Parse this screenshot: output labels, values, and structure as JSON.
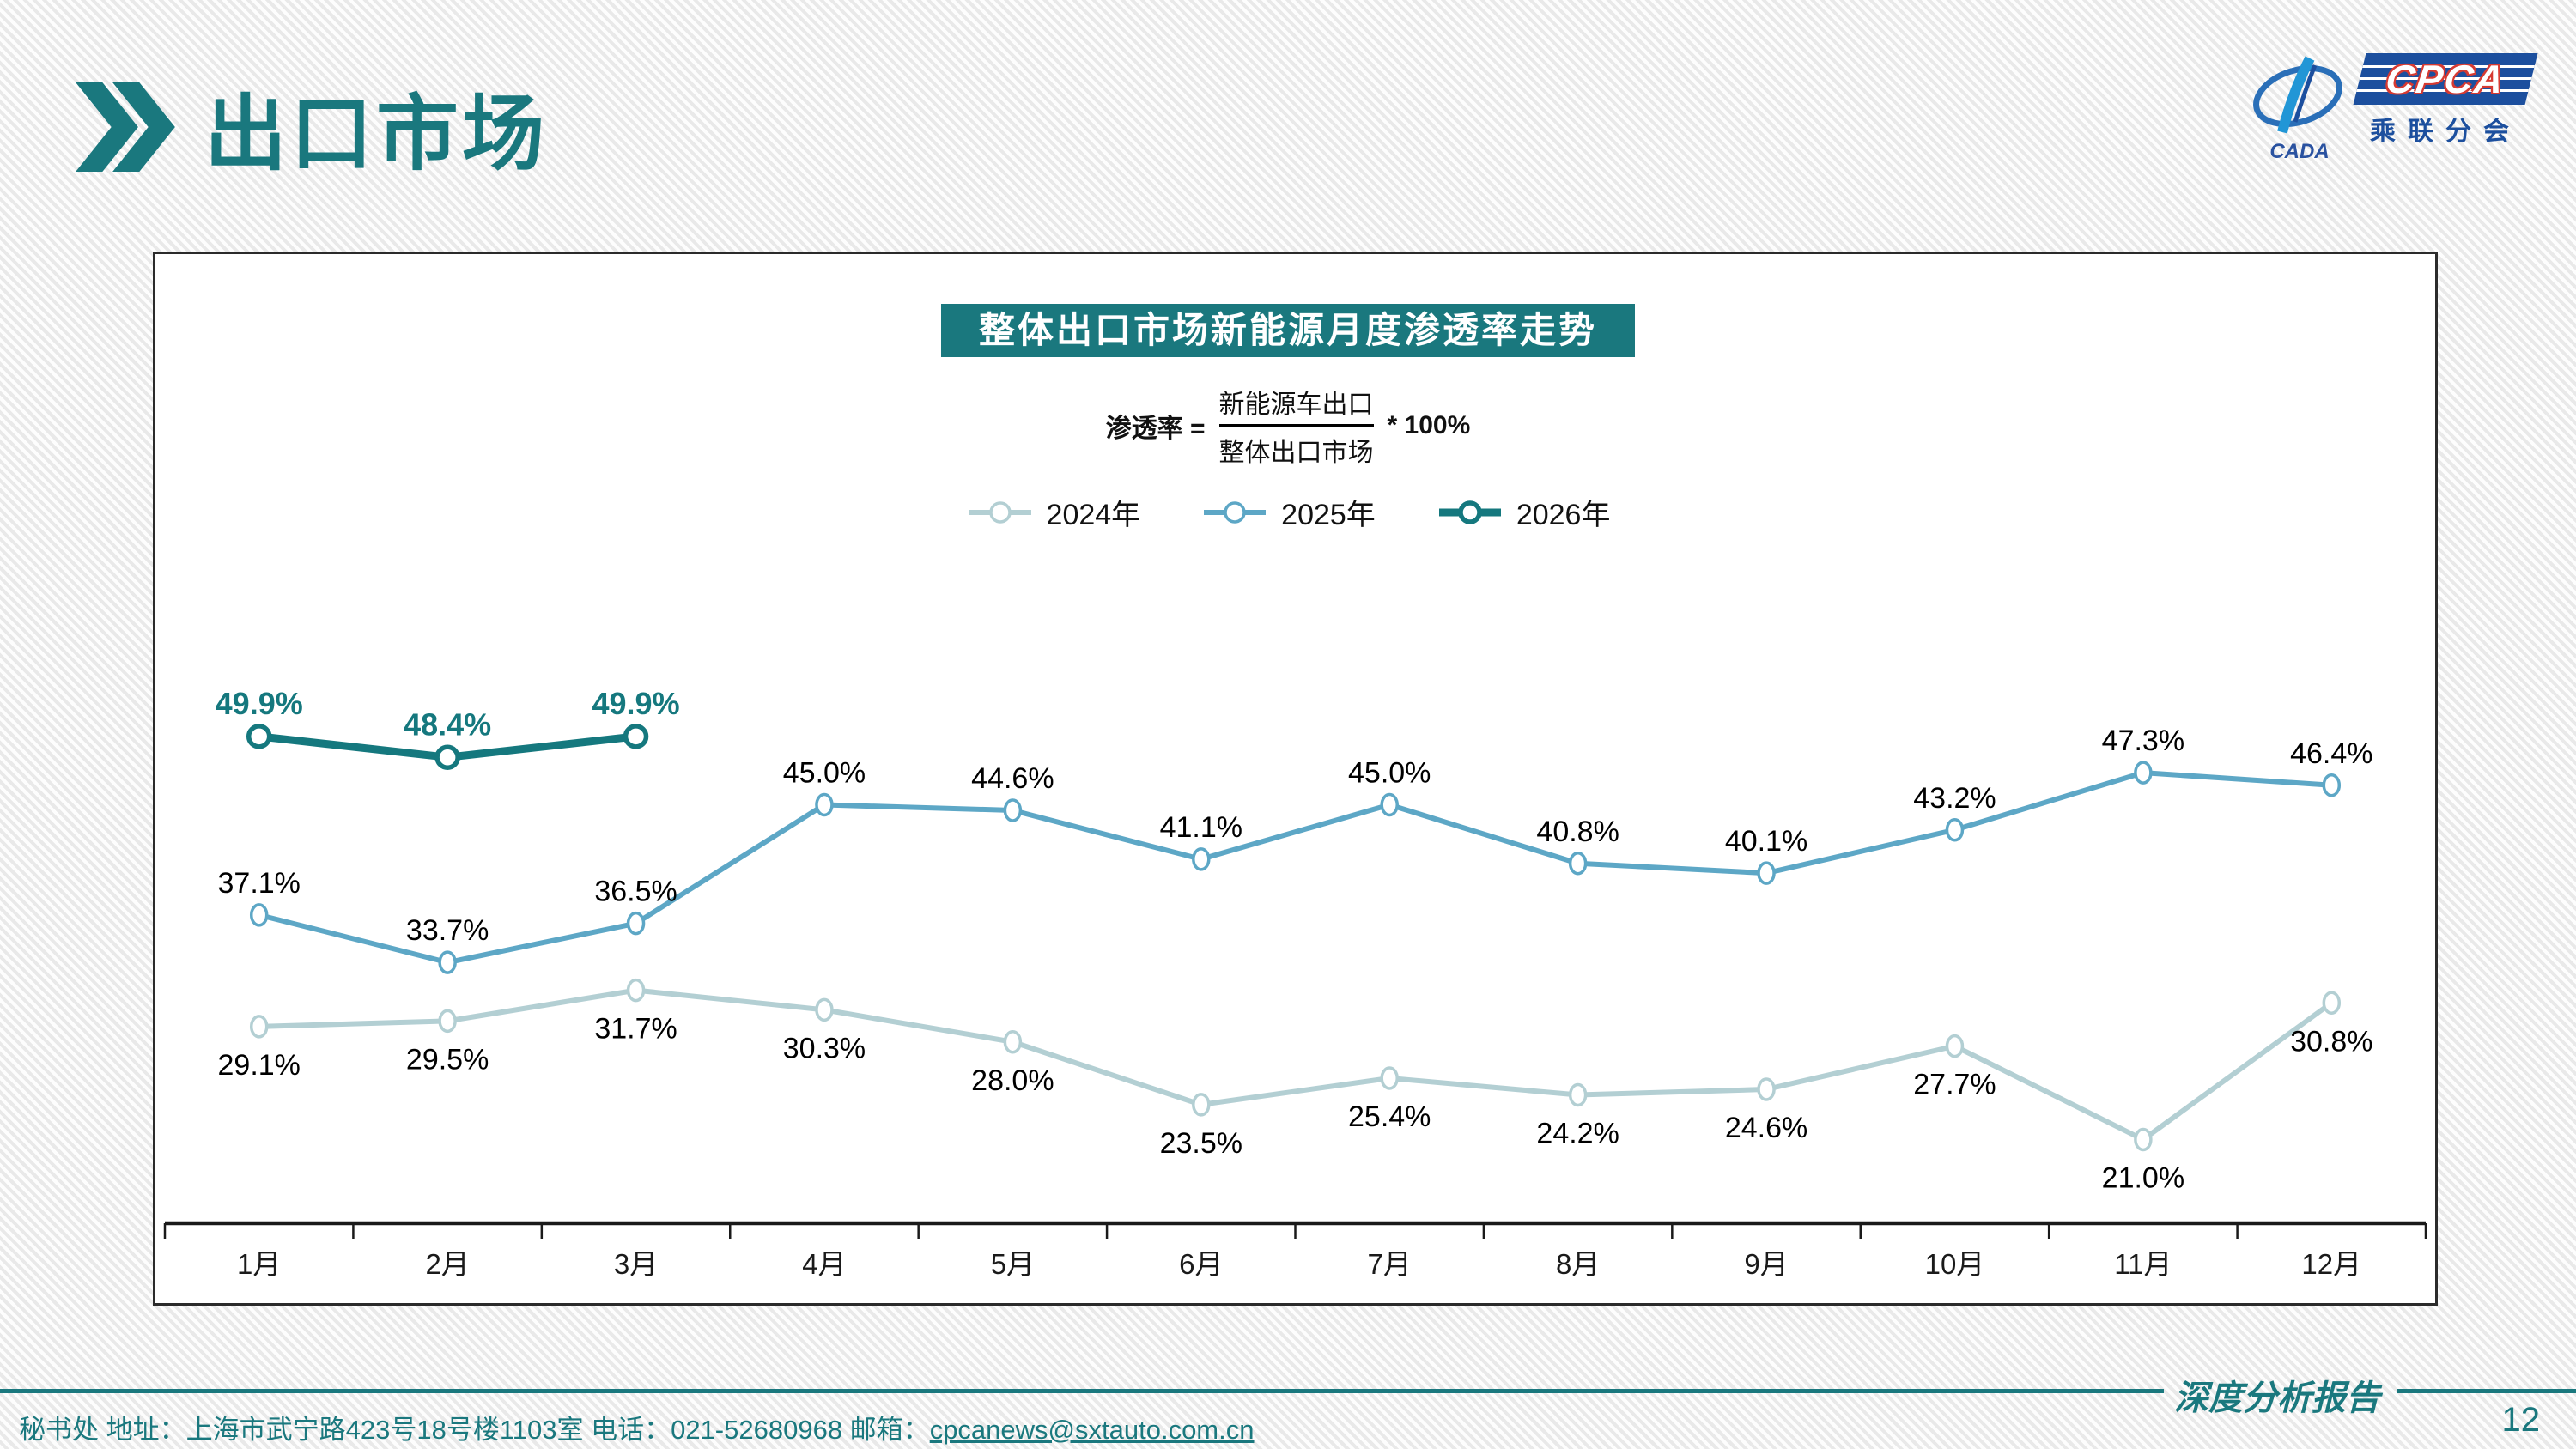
{
  "header": {
    "title": "出口市场"
  },
  "logo": {
    "cada": "CADA",
    "org_en": "CPCA",
    "org_cn": "乘联分会"
  },
  "chart_data": {
    "type": "line",
    "title": "整体出口市场新能源月度渗透率走势",
    "formula": {
      "lhs": "渗透率 =",
      "numerator": "新能源车出口",
      "denominator": "整体出口市场",
      "rhs": "* 100%"
    },
    "categories": [
      "1月",
      "2月",
      "3月",
      "4月",
      "5月",
      "6月",
      "7月",
      "8月",
      "9月",
      "10月",
      "11月",
      "12月"
    ],
    "series": [
      {
        "name": "2024年",
        "color": "#b3cfd3",
        "values": [
          29.1,
          29.5,
          31.7,
          30.3,
          28.0,
          23.5,
          25.4,
          24.2,
          24.6,
          27.7,
          21.0,
          30.8
        ]
      },
      {
        "name": "2025年",
        "color": "#5da7c6",
        "values": [
          37.1,
          33.7,
          36.5,
          45.0,
          44.6,
          41.1,
          45.0,
          40.8,
          40.1,
          43.2,
          47.3,
          46.4
        ]
      },
      {
        "name": "2026年",
        "color": "#15787e",
        "values": [
          49.9,
          48.4,
          49.9
        ]
      }
    ],
    "value_suffix": "%",
    "ylim": [
      15,
      56
    ],
    "grid": false,
    "legend_position": "top-center",
    "xlabel": "",
    "ylabel": ""
  },
  "footer": {
    "contact_prefix": "秘书处  地址：上海市武宁路423号18号楼1103室 电话：021-52680968  邮箱：",
    "email": "cpcanews@sxtauto.com.cn",
    "report_label": "深度分析报告",
    "page_number": "12"
  },
  "colors": {
    "accent": "#1a787e",
    "axis_line": "#1a1a1a",
    "data_label": "#000000",
    "logo_blue": "#1c4f9e",
    "logo_red": "#d63a32",
    "logo_light_blue": "#2196d6"
  }
}
